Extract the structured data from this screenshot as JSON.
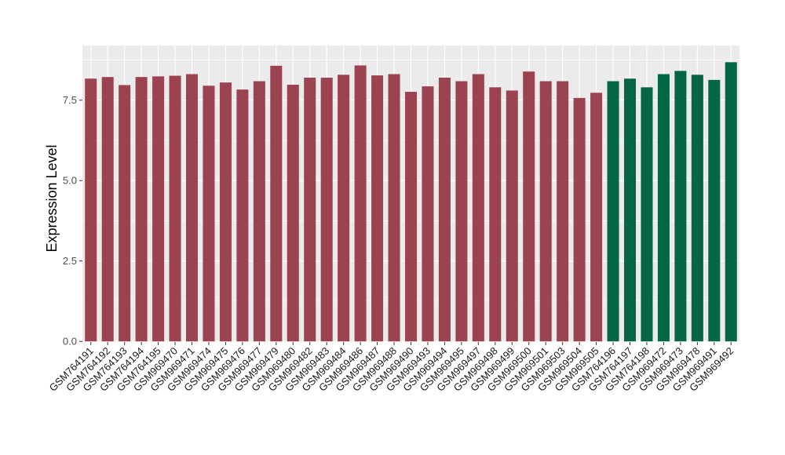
{
  "chart_data": {
    "type": "bar",
    "title": "",
    "xlabel": "",
    "ylabel": "Expression Level",
    "ylim": [
      -0.02,
      9.2
    ],
    "yticks": [
      0.0,
      2.5,
      5.0,
      7.5
    ],
    "ytick_labels": [
      "0.0",
      "2.5",
      "5.0",
      "7.5"
    ],
    "grid": true,
    "legend": "none",
    "colors": {
      "group_1": "#9b4350",
      "group_2": "#046645",
      "panel_background": "#ebebeb",
      "grid_line": "#ffffff"
    },
    "categories": [
      "GSM764191",
      "GSM764192",
      "GSM764193",
      "GSM764194",
      "GSM764195",
      "GSM969470",
      "GSM969471",
      "GSM969474",
      "GSM969475",
      "GSM969476",
      "GSM969477",
      "GSM969479",
      "GSM969480",
      "GSM969482",
      "GSM969483",
      "GSM969484",
      "GSM969486",
      "GSM969487",
      "GSM969488",
      "GSM969490",
      "GSM969493",
      "GSM969494",
      "GSM969495",
      "GSM969497",
      "GSM969498",
      "GSM969499",
      "GSM969500",
      "GSM969501",
      "GSM969503",
      "GSM969504",
      "GSM969505",
      "GSM764196",
      "GSM764197",
      "GSM764198",
      "GSM969472",
      "GSM969473",
      "GSM969478",
      "GSM969491",
      "GSM969492"
    ],
    "values": [
      8.17,
      8.22,
      7.97,
      8.22,
      8.24,
      8.26,
      8.31,
      7.95,
      8.05,
      7.83,
      8.09,
      8.57,
      7.98,
      8.2,
      8.2,
      8.29,
      8.58,
      8.27,
      8.31,
      7.76,
      7.93,
      8.2,
      8.09,
      8.31,
      7.9,
      7.8,
      8.39,
      8.09,
      8.09,
      7.57,
      7.73,
      8.09,
      8.17,
      7.9,
      8.31,
      8.41,
      8.29,
      8.13,
      8.68
    ],
    "groups": [
      1,
      1,
      1,
      1,
      1,
      1,
      1,
      1,
      1,
      1,
      1,
      1,
      1,
      1,
      1,
      1,
      1,
      1,
      1,
      1,
      1,
      1,
      1,
      1,
      1,
      1,
      1,
      1,
      1,
      1,
      1,
      2,
      2,
      2,
      2,
      2,
      2,
      2,
      2
    ]
  }
}
